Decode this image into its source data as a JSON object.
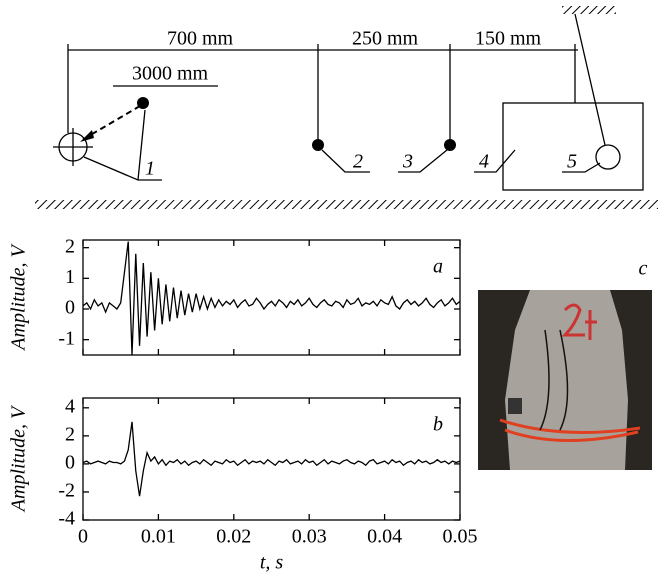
{
  "diagram": {
    "dimensions": [
      "700 mm",
      "250 mm",
      "150 mm",
      "3000 mm"
    ],
    "labels": [
      "1",
      "2",
      "3",
      "4",
      "5"
    ],
    "photo_label": "c"
  },
  "chart_data": [
    {
      "type": "line",
      "label": "a",
      "ylabel": "Amplitude, V",
      "color": "#000000",
      "xlim": [
        0,
        0.05
      ],
      "xticks": [
        0,
        0.01,
        0.02,
        0.03,
        0.04,
        0.05
      ],
      "ylim": [
        -1.5,
        2.25
      ],
      "yticks": [
        -1,
        0,
        1,
        2
      ],
      "grid": false,
      "x": [
        0,
        0.0005,
        0.001,
        0.0015,
        0.002,
        0.0025,
        0.003,
        0.0035,
        0.004,
        0.0045,
        0.005,
        0.0055,
        0.006,
        0.0065,
        0.007,
        0.0075,
        0.008,
        0.0085,
        0.009,
        0.0095,
        0.01,
        0.0105,
        0.011,
        0.0115,
        0.012,
        0.0125,
        0.013,
        0.0135,
        0.014,
        0.0145,
        0.015,
        0.0155,
        0.016,
        0.0165,
        0.017,
        0.0175,
        0.018,
        0.0185,
        0.019,
        0.0195,
        0.02,
        0.0205,
        0.021,
        0.0215,
        0.022,
        0.0225,
        0.023,
        0.0235,
        0.024,
        0.0245,
        0.025,
        0.0255,
        0.026,
        0.0265,
        0.027,
        0.0275,
        0.028,
        0.0285,
        0.029,
        0.0295,
        0.03,
        0.0305,
        0.031,
        0.0315,
        0.032,
        0.0325,
        0.033,
        0.0335,
        0.034,
        0.0345,
        0.035,
        0.0355,
        0.036,
        0.0365,
        0.037,
        0.0375,
        0.038,
        0.0385,
        0.039,
        0.0395,
        0.04,
        0.0405,
        0.041,
        0.0415,
        0.042,
        0.0425,
        0.043,
        0.0435,
        0.044,
        0.0445,
        0.045,
        0.0455,
        0.046,
        0.0465,
        0.047,
        0.0475,
        0.048,
        0.0485,
        0.049,
        0.0495,
        0.05
      ],
      "values": [
        0.1,
        0.2,
        0.0,
        0.3,
        0.1,
        0.2,
        -0.1,
        0.2,
        0.1,
        0.0,
        0.2,
        1.2,
        2.2,
        -1.5,
        1.8,
        -1.2,
        1.5,
        -0.9,
        1.2,
        -0.7,
        1.0,
        -0.5,
        0.8,
        -0.4,
        0.7,
        -0.3,
        0.6,
        -0.2,
        0.5,
        -0.1,
        0.5,
        0.0,
        0.4,
        0.0,
        0.35,
        0.05,
        0.3,
        0.1,
        0.25,
        0.15,
        0.3,
        0.05,
        0.2,
        0.3,
        0.1,
        0.15,
        0.35,
        0.2,
        0.0,
        0.15,
        0.25,
        0.1,
        0.3,
        0.2,
        0.05,
        0.25,
        0.15,
        0.3,
        0.1,
        0.2,
        0.35,
        0.15,
        0.05,
        0.2,
        0.3,
        0.15,
        0.1,
        0.25,
        0.2,
        0.05,
        0.3,
        0.15,
        0.2,
        0.35,
        0.1,
        0.2,
        0.15,
        0.25,
        0.1,
        0.3,
        0.2,
        0.15,
        0.4,
        0.1,
        0.0,
        0.2,
        0.3,
        0.15,
        0.25,
        0.1,
        0.2,
        0.35,
        0.15,
        0.05,
        0.2,
        0.3,
        0.1,
        0.2,
        0.35,
        0.15,
        0.25
      ]
    },
    {
      "type": "line",
      "label": "b",
      "ylabel": "Amplitude, V",
      "xlabel": "t, s",
      "color": "#000000",
      "xlim": [
        0,
        0.05
      ],
      "xticks": [
        0,
        0.01,
        0.02,
        0.03,
        0.04,
        0.05
      ],
      "ylim": [
        -4,
        4.7
      ],
      "yticks": [
        -4,
        -2,
        0,
        2,
        4
      ],
      "grid": false,
      "x": [
        0,
        0.0005,
        0.001,
        0.0015,
        0.002,
        0.0025,
        0.003,
        0.0035,
        0.004,
        0.0045,
        0.005,
        0.0055,
        0.006,
        0.0065,
        0.007,
        0.0075,
        0.008,
        0.0085,
        0.009,
        0.0095,
        0.01,
        0.0105,
        0.011,
        0.0115,
        0.012,
        0.0125,
        0.013,
        0.0135,
        0.014,
        0.0145,
        0.015,
        0.0155,
        0.016,
        0.0165,
        0.017,
        0.0175,
        0.018,
        0.0185,
        0.019,
        0.0195,
        0.02,
        0.0205,
        0.021,
        0.0215,
        0.022,
        0.0225,
        0.023,
        0.0235,
        0.024,
        0.0245,
        0.025,
        0.0255,
        0.026,
        0.0265,
        0.027,
        0.0275,
        0.028,
        0.0285,
        0.029,
        0.0295,
        0.03,
        0.0305,
        0.031,
        0.0315,
        0.032,
        0.0325,
        0.033,
        0.0335,
        0.034,
        0.0345,
        0.035,
        0.0355,
        0.036,
        0.0365,
        0.037,
        0.0375,
        0.038,
        0.0385,
        0.039,
        0.0395,
        0.04,
        0.0405,
        0.041,
        0.0415,
        0.042,
        0.0425,
        0.043,
        0.0435,
        0.044,
        0.0445,
        0.045,
        0.0455,
        0.046,
        0.0465,
        0.047,
        0.0475,
        0.048,
        0.0485,
        0.049,
        0.0495,
        0.05
      ],
      "values": [
        0.1,
        0.2,
        0.0,
        0.1,
        0.2,
        0.1,
        0.0,
        0.2,
        0.1,
        0.1,
        0.0,
        0.2,
        1.0,
        3.0,
        -0.5,
        -2.3,
        -0.5,
        0.8,
        0.2,
        0.5,
        0.0,
        0.3,
        -0.1,
        0.2,
        0.1,
        0.3,
        0.0,
        0.2,
        -0.1,
        0.1,
        0.2,
        0.0,
        0.3,
        0.1,
        -0.1,
        0.2,
        0.1,
        0.0,
        0.3,
        0.1,
        0.2,
        -0.1,
        0.1,
        0.3,
        0.0,
        0.2,
        0.1,
        0.2,
        0.0,
        0.3,
        0.1,
        -0.1,
        0.2,
        0.1,
        0.3,
        0.0,
        0.1,
        0.2,
        0.0,
        0.3,
        0.1,
        0.2,
        -0.1,
        0.1,
        0.3,
        0.0,
        0.2,
        0.1,
        0.0,
        0.2,
        0.3,
        0.1,
        0.0,
        0.2,
        0.1,
        -0.1,
        0.2,
        0.3,
        0.0,
        0.1,
        0.2,
        0.0,
        0.3,
        0.1,
        0.2,
        -0.1,
        0.1,
        0.2,
        0.0,
        0.3,
        0.1,
        0.2,
        0.0,
        0.1,
        0.3,
        0.1,
        0.2,
        0.0,
        0.2,
        0.1,
        0.2
      ]
    }
  ]
}
